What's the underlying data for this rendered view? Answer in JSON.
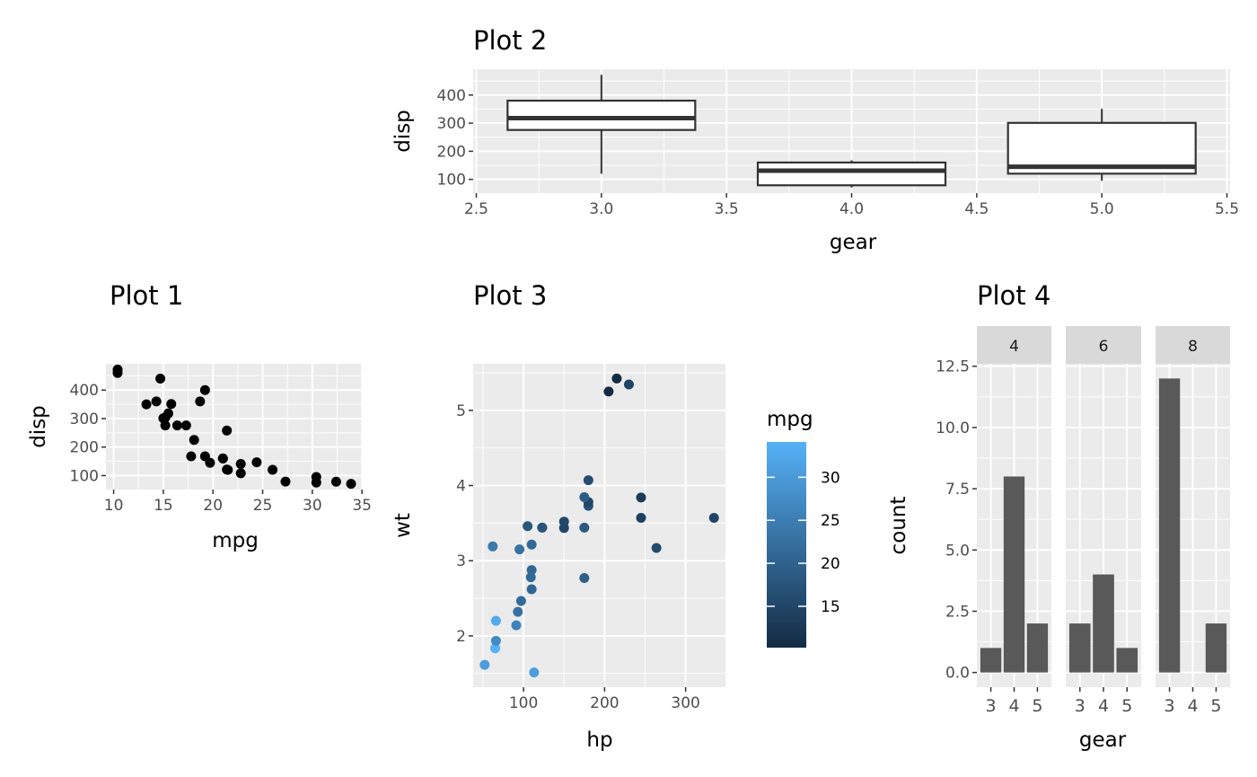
{
  "chart_data": [
    {
      "id": "plot1",
      "type": "scatter",
      "title": "Plot 1",
      "xlabel": "mpg",
      "ylabel": "disp",
      "xlim": [
        9.225,
        35.075
      ],
      "ylim": [
        51.06,
        492.05
      ],
      "xticks": [
        10,
        15,
        20,
        25,
        30,
        35
      ],
      "xtick_labels": [
        "10",
        "15",
        "20",
        "25",
        "30",
        "35"
      ],
      "yticks": [
        100,
        200,
        300,
        400
      ],
      "ytick_labels": [
        "100",
        "200",
        "300",
        "400"
      ],
      "point_color": "#000000",
      "points": [
        [
          21,
          160
        ],
        [
          21,
          160
        ],
        [
          22.8,
          108
        ],
        [
          21.4,
          258
        ],
        [
          18.7,
          360
        ],
        [
          18.1,
          225
        ],
        [
          14.3,
          360
        ],
        [
          24.4,
          146.7
        ],
        [
          22.8,
          140.8
        ],
        [
          19.2,
          167.6
        ],
        [
          17.8,
          167.6
        ],
        [
          16.4,
          275.8
        ],
        [
          17.3,
          275.8
        ],
        [
          15.2,
          275.8
        ],
        [
          10.4,
          472
        ],
        [
          10.4,
          460
        ],
        [
          14.7,
          440
        ],
        [
          32.4,
          78.7
        ],
        [
          30.4,
          75.7
        ],
        [
          33.9,
          71.1
        ],
        [
          21.5,
          120.1
        ],
        [
          15.5,
          318
        ],
        [
          15.2,
          304
        ],
        [
          13.3,
          350
        ],
        [
          19.2,
          400
        ],
        [
          27.3,
          79
        ],
        [
          26,
          120.3
        ],
        [
          30.4,
          95.1
        ],
        [
          15.8,
          351
        ],
        [
          19.7,
          145
        ],
        [
          15,
          301
        ],
        [
          21.4,
          121
        ]
      ]
    },
    {
      "id": "plot2",
      "type": "box",
      "title": "Plot 2",
      "xlabel": "gear",
      "ylabel": "disp",
      "xlim": [
        2.4875,
        5.5125
      ],
      "ylim": [
        51.06,
        492.05
      ],
      "xticks": [
        2.5,
        3.0,
        3.5,
        4.0,
        4.5,
        5.0,
        5.5
      ],
      "xtick_labels": [
        "2.5",
        "3.0",
        "3.5",
        "4.0",
        "4.5",
        "5.0",
        "5.5"
      ],
      "yticks": [
        100,
        200,
        300,
        400
      ],
      "ytick_labels": [
        "100",
        "200",
        "300",
        "400"
      ],
      "box_halfwidth": 0.375,
      "boxes": [
        {
          "x": 3,
          "ymin": 120.1,
          "lower": 275.8,
          "middle": 318,
          "upper": 380,
          "ymax": 472
        },
        {
          "x": 4,
          "ymin": 71.1,
          "lower": 78.925,
          "middle": 130.9,
          "upper": 160,
          "ymax": 167.6
        },
        {
          "x": 5,
          "ymin": 95.1,
          "lower": 120.3,
          "middle": 145,
          "upper": 301,
          "ymax": 351
        }
      ]
    },
    {
      "id": "plot3",
      "type": "scatter",
      "title": "Plot 3",
      "xlabel": "hp",
      "ylabel": "wt",
      "xlim": [
        37.85,
        349.15
      ],
      "ylim": [
        1.3175,
        5.6195
      ],
      "xticks": [
        100,
        200,
        300
      ],
      "xtick_labels": [
        "100",
        "200",
        "300"
      ],
      "yticks": [
        2,
        3,
        4,
        5
      ],
      "ytick_labels": [
        "2",
        "3",
        "4",
        "5"
      ],
      "legend": {
        "title": "mpg",
        "breaks": [
          15,
          20,
          25,
          30
        ],
        "labels": [
          "15",
          "20",
          "25",
          "30"
        ],
        "limits": [
          10.4,
          33.9
        ],
        "low": "#132B43",
        "high": "#56B1F7",
        "position": "right"
      },
      "points": [
        [
          110,
          2.62,
          21
        ],
        [
          110,
          2.875,
          21
        ],
        [
          93,
          2.32,
          22.8
        ],
        [
          110,
          3.215,
          21.4
        ],
        [
          175,
          3.44,
          18.7
        ],
        [
          105,
          3.46,
          18.1
        ],
        [
          245,
          3.57,
          14.3
        ],
        [
          62,
          3.19,
          24.4
        ],
        [
          95,
          3.15,
          22.8
        ],
        [
          123,
          3.44,
          19.2
        ],
        [
          123,
          3.44,
          17.8
        ],
        [
          180,
          4.07,
          16.4
        ],
        [
          180,
          3.73,
          17.3
        ],
        [
          180,
          3.78,
          15.2
        ],
        [
          205,
          5.25,
          10.4
        ],
        [
          215,
          5.424,
          10.4
        ],
        [
          230,
          5.345,
          14.7
        ],
        [
          66,
          2.2,
          32.4
        ],
        [
          52,
          1.615,
          30.4
        ],
        [
          65,
          1.835,
          33.9
        ],
        [
          97,
          2.465,
          21.5
        ],
        [
          150,
          3.52,
          15.5
        ],
        [
          150,
          3.435,
          15.2
        ],
        [
          245,
          3.84,
          13.3
        ],
        [
          175,
          3.845,
          19.2
        ],
        [
          66,
          1.935,
          27.3
        ],
        [
          91,
          2.14,
          26
        ],
        [
          113,
          1.513,
          30.4
        ],
        [
          264,
          3.17,
          15.8
        ],
        [
          175,
          2.77,
          19.7
        ],
        [
          335,
          3.57,
          15
        ],
        [
          109,
          2.78,
          21.4
        ]
      ]
    },
    {
      "id": "plot4",
      "type": "bar",
      "title": "Plot 4",
      "xlabel": "gear",
      "ylabel": "count",
      "categories": [
        "3",
        "4",
        "5"
      ],
      "ylim": [
        -0.6,
        12.6
      ],
      "yticks": [
        0,
        2.5,
        5,
        7.5,
        10,
        12.5
      ],
      "ytick_labels": [
        "0.0",
        "2.5",
        "5.0",
        "7.5",
        "10.0",
        "12.5"
      ],
      "bar_color": "#595959",
      "facets": [
        {
          "label": "4",
          "counts": [
            1,
            8,
            2
          ]
        },
        {
          "label": "6",
          "counts": [
            2,
            4,
            1
          ]
        },
        {
          "label": "8",
          "counts": [
            12,
            0,
            2
          ]
        }
      ]
    }
  ]
}
